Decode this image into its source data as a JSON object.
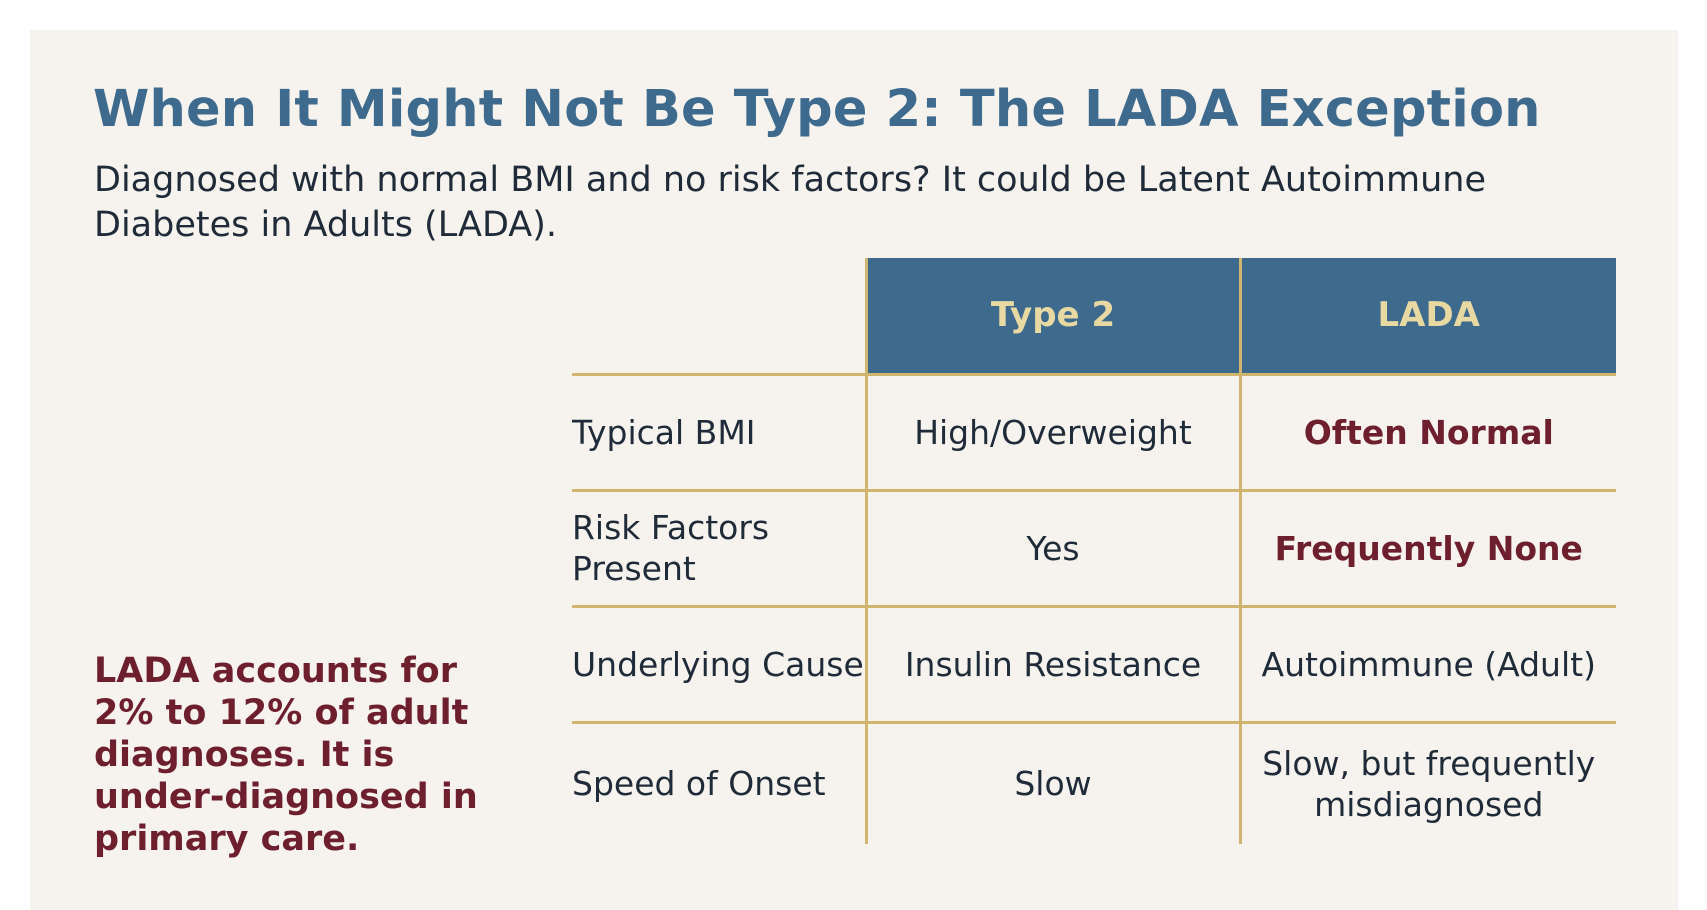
{
  "slide": {
    "title": "When It Might Not Be Type 2: The LADA Exception",
    "subtitle": "Diagnosed with normal BMI and no risk factors? It could be Latent Autoimmune Diabetes in Adults (LADA).",
    "callout": "LADA accounts for 2% to 12% of adult diagnoses. It is under-diagnosed in primary care."
  },
  "table": {
    "columns": [
      "",
      "Type 2",
      "LADA"
    ],
    "rows": [
      {
        "label": "Typical BMI",
        "type2": "High/Overweight",
        "lada": "Often Normal"
      },
      {
        "label": "Risk Factors Present",
        "type2": "Yes",
        "lada": "Frequently None"
      },
      {
        "label": "Underlying Cause",
        "type2": "Insulin Resistance",
        "lada": "Autoimmune (Adult)"
      },
      {
        "label": "Speed of Onset",
        "type2": "Slow",
        "lada": "Slow, but frequently misdiagnosed"
      }
    ]
  },
  "colors": {
    "background": "#f6f3ee",
    "title": "#3d6a8d",
    "header_fill": "#3d6a8d",
    "header_text": "#e8d8a2",
    "grid": "#cfb56d",
    "emphasis": "#6e1f2d",
    "body_text": "#1f2b38"
  }
}
